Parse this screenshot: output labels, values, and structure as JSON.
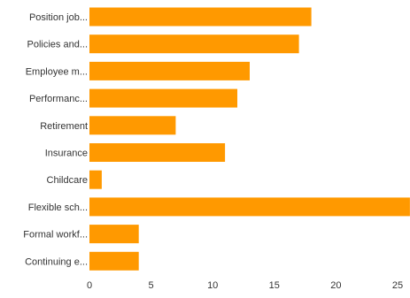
{
  "chart_data": {
    "type": "bar",
    "orientation": "horizontal",
    "categories": [
      "Position job...",
      "Policies and...",
      "Employee m...",
      "Performanc...",
      "Retirement",
      "Insurance",
      "Childcare",
      "Flexible sch...",
      "Formal workf...",
      "Continuing e..."
    ],
    "values": [
      18,
      17,
      13,
      12,
      7,
      11,
      1,
      26,
      4,
      4
    ],
    "xlim": [
      0,
      25
    ],
    "xticks": [
      "0",
      "5",
      "10",
      "15",
      "20",
      "25"
    ],
    "bar_color": "#FF9900",
    "grid": false,
    "legend": "none"
  }
}
